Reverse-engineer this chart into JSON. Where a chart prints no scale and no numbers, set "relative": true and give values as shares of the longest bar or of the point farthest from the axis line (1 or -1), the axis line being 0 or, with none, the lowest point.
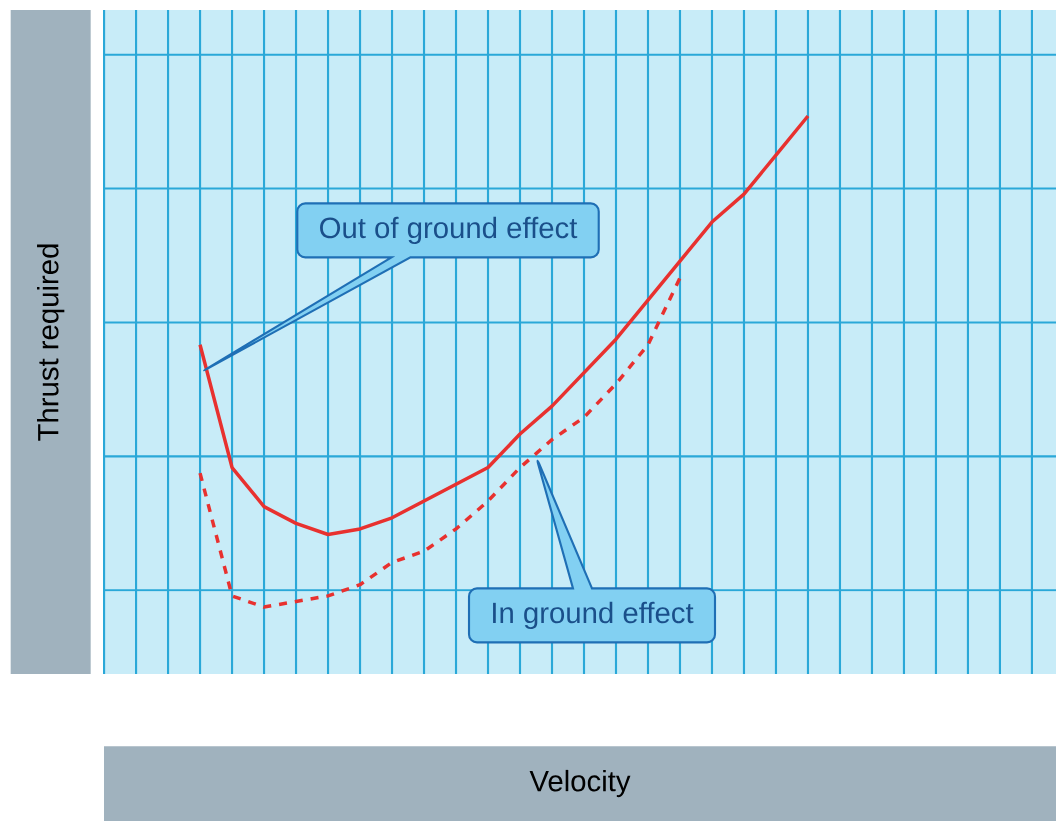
{
  "chart_data": {
    "type": "line",
    "relative": true,
    "annotations": [
      "Out of ground effect",
      "In ground effect"
    ],
    "xlabel": "Velocity",
    "ylabel": "Thrust required",
    "grid": true,
    "categories": [
      null,
      null,
      null,
      null,
      null,
      null,
      null,
      null,
      null,
      null,
      null,
      null,
      null,
      null,
      null,
      null,
      null,
      null,
      null,
      null
    ],
    "series": [
      {
        "color": "#e8312f",
        "line_style": "solid",
        "values": [
          0.59,
          0.37,
          0.3,
          0.27,
          0.25,
          0.26,
          0.28,
          0.31,
          0.34,
          0.37,
          0.43,
          0.48,
          0.54,
          0.6,
          0.67,
          0.74,
          0.81,
          0.86,
          0.93,
          1.0
        ]
      },
      {
        "color": "#e8312f",
        "line_style": "dashed",
        "values": [
          0.36,
          0.14,
          0.12,
          0.13,
          0.14,
          0.16,
          0.2,
          0.22,
          0.26,
          0.31,
          0.37,
          0.42,
          0.46,
          0.52,
          0.59,
          0.71,
          null,
          null,
          null,
          null
        ]
      }
    ]
  }
}
